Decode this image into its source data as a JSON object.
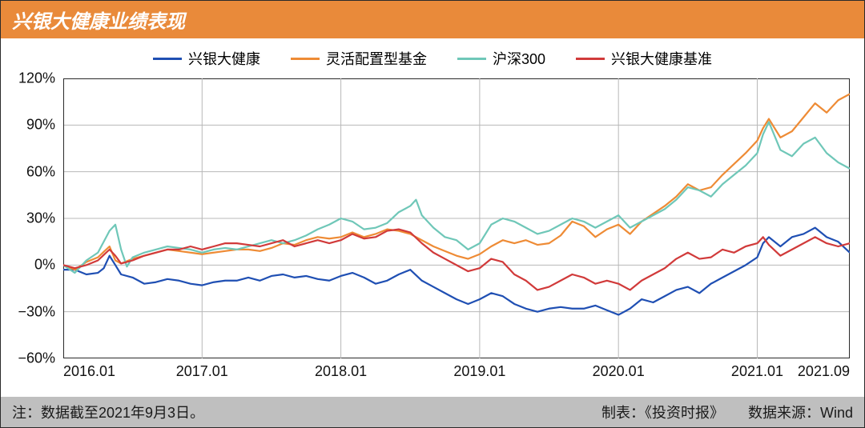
{
  "title": "兴银大健康业绩表现",
  "colors": {
    "title_bg": "#e98a3a",
    "footer_bg": "#bfbfbf",
    "grid": "#b8b8b8",
    "axis": "#2a2a2a"
  },
  "footer": {
    "note": "注：数据截至2021年9月3日。",
    "maker": "制表：《投资时报》",
    "source": "数据来源：Wind"
  },
  "chart": {
    "type": "line",
    "ylim": [
      -60,
      120
    ],
    "ytick_step": 30,
    "yticks": [
      -60,
      -30,
      0,
      30,
      60,
      90,
      120
    ],
    "x_domain": [
      0,
      68
    ],
    "xticks": [
      {
        "pos": 0,
        "label": "2016.01"
      },
      {
        "pos": 12,
        "label": "2017.01"
      },
      {
        "pos": 24,
        "label": "2018.01"
      },
      {
        "pos": 36,
        "label": "2019.01"
      },
      {
        "pos": 48,
        "label": "2020.01"
      },
      {
        "pos": 60,
        "label": "2021.01"
      },
      {
        "pos": 68,
        "label": "2021.09"
      }
    ],
    "line_width": 2.2,
    "series": [
      {
        "id": "fund",
        "label": "兴银大健康",
        "color": "#1f4fb3",
        "data": [
          [
            0,
            -3
          ],
          [
            1,
            -3
          ],
          [
            2,
            -6
          ],
          [
            3,
            -5
          ],
          [
            3.5,
            -2
          ],
          [
            4,
            6
          ],
          [
            4.5,
            0
          ],
          [
            5,
            -6
          ],
          [
            6,
            -8
          ],
          [
            7,
            -12
          ],
          [
            8,
            -11
          ],
          [
            9,
            -9
          ],
          [
            10,
            -10
          ],
          [
            11,
            -12
          ],
          [
            12,
            -13
          ],
          [
            13,
            -11
          ],
          [
            14,
            -10
          ],
          [
            15,
            -10
          ],
          [
            16,
            -8
          ],
          [
            17,
            -10
          ],
          [
            18,
            -7
          ],
          [
            19,
            -6
          ],
          [
            20,
            -8
          ],
          [
            21,
            -7
          ],
          [
            22,
            -9
          ],
          [
            23,
            -10
          ],
          [
            24,
            -7
          ],
          [
            25,
            -5
          ],
          [
            26,
            -8
          ],
          [
            27,
            -12
          ],
          [
            28,
            -10
          ],
          [
            29,
            -6
          ],
          [
            30,
            -3
          ],
          [
            31,
            -10
          ],
          [
            32,
            -14
          ],
          [
            33,
            -18
          ],
          [
            34,
            -22
          ],
          [
            35,
            -25
          ],
          [
            36,
            -22
          ],
          [
            37,
            -18
          ],
          [
            38,
            -20
          ],
          [
            39,
            -25
          ],
          [
            40,
            -28
          ],
          [
            41,
            -30
          ],
          [
            42,
            -28
          ],
          [
            43,
            -27
          ],
          [
            44,
            -28
          ],
          [
            45,
            -28
          ],
          [
            46,
            -26
          ],
          [
            47,
            -29
          ],
          [
            48,
            -32
          ],
          [
            49,
            -28
          ],
          [
            50,
            -22
          ],
          [
            51,
            -24
          ],
          [
            52,
            -20
          ],
          [
            53,
            -16
          ],
          [
            54,
            -14
          ],
          [
            55,
            -18
          ],
          [
            56,
            -12
          ],
          [
            57,
            -8
          ],
          [
            58,
            -4
          ],
          [
            59,
            0
          ],
          [
            60,
            5
          ],
          [
            60.5,
            14
          ],
          [
            61,
            18
          ],
          [
            62,
            12
          ],
          [
            63,
            18
          ],
          [
            64,
            20
          ],
          [
            65,
            24
          ],
          [
            66,
            18
          ],
          [
            67,
            15
          ],
          [
            68,
            8
          ]
        ]
      },
      {
        "id": "flexible",
        "label": "灵活配置型基金",
        "color": "#ee8b35",
        "data": [
          [
            0,
            0
          ],
          [
            1,
            -3
          ],
          [
            2,
            2
          ],
          [
            3,
            5
          ],
          [
            4,
            12
          ],
          [
            4.5,
            3
          ],
          [
            5,
            1
          ],
          [
            6,
            4
          ],
          [
            7,
            6
          ],
          [
            8,
            8
          ],
          [
            9,
            10
          ],
          [
            10,
            9
          ],
          [
            11,
            8
          ],
          [
            12,
            7
          ],
          [
            13,
            8
          ],
          [
            14,
            9
          ],
          [
            15,
            10
          ],
          [
            16,
            10
          ],
          [
            17,
            9
          ],
          [
            18,
            11
          ],
          [
            19,
            14
          ],
          [
            20,
            13
          ],
          [
            21,
            16
          ],
          [
            22,
            18
          ],
          [
            23,
            17
          ],
          [
            24,
            18
          ],
          [
            25,
            21
          ],
          [
            26,
            18
          ],
          [
            27,
            20
          ],
          [
            28,
            23
          ],
          [
            29,
            22
          ],
          [
            30,
            20
          ],
          [
            31,
            16
          ],
          [
            32,
            12
          ],
          [
            33,
            9
          ],
          [
            34,
            6
          ],
          [
            35,
            4
          ],
          [
            36,
            7
          ],
          [
            37,
            12
          ],
          [
            38,
            16
          ],
          [
            39,
            14
          ],
          [
            40,
            16
          ],
          [
            41,
            13
          ],
          [
            42,
            14
          ],
          [
            43,
            19
          ],
          [
            44,
            28
          ],
          [
            45,
            25
          ],
          [
            46,
            18
          ],
          [
            47,
            23
          ],
          [
            48,
            26
          ],
          [
            49,
            20
          ],
          [
            50,
            28
          ],
          [
            51,
            33
          ],
          [
            52,
            38
          ],
          [
            53,
            44
          ],
          [
            54,
            52
          ],
          [
            55,
            48
          ],
          [
            56,
            50
          ],
          [
            57,
            58
          ],
          [
            58,
            65
          ],
          [
            59,
            72
          ],
          [
            60,
            80
          ],
          [
            60.5,
            88
          ],
          [
            61,
            94
          ],
          [
            62,
            82
          ],
          [
            63,
            86
          ],
          [
            64,
            95
          ],
          [
            65,
            104
          ],
          [
            66,
            98
          ],
          [
            67,
            106
          ],
          [
            68,
            110
          ]
        ]
      },
      {
        "id": "csi300",
        "label": "沪深300",
        "color": "#6fc7b8",
        "data": [
          [
            0,
            0
          ],
          [
            1,
            -5
          ],
          [
            2,
            3
          ],
          [
            3,
            8
          ],
          [
            4,
            22
          ],
          [
            4.5,
            26
          ],
          [
            5,
            10
          ],
          [
            5.5,
            -1
          ],
          [
            6,
            5
          ],
          [
            7,
            8
          ],
          [
            8,
            10
          ],
          [
            9,
            12
          ],
          [
            10,
            11
          ],
          [
            11,
            10
          ],
          [
            12,
            8
          ],
          [
            13,
            10
          ],
          [
            14,
            11
          ],
          [
            15,
            10
          ],
          [
            16,
            12
          ],
          [
            17,
            14
          ],
          [
            18,
            16
          ],
          [
            19,
            14
          ],
          [
            20,
            16
          ],
          [
            21,
            19
          ],
          [
            22,
            23
          ],
          [
            23,
            26
          ],
          [
            24,
            30
          ],
          [
            25,
            28
          ],
          [
            26,
            23
          ],
          [
            27,
            24
          ],
          [
            28,
            27
          ],
          [
            29,
            34
          ],
          [
            30,
            38
          ],
          [
            30.5,
            42
          ],
          [
            31,
            32
          ],
          [
            32,
            24
          ],
          [
            33,
            18
          ],
          [
            34,
            16
          ],
          [
            35,
            10
          ],
          [
            36,
            14
          ],
          [
            37,
            26
          ],
          [
            38,
            30
          ],
          [
            39,
            28
          ],
          [
            40,
            24
          ],
          [
            41,
            20
          ],
          [
            42,
            22
          ],
          [
            43,
            26
          ],
          [
            44,
            30
          ],
          [
            45,
            28
          ],
          [
            46,
            24
          ],
          [
            47,
            28
          ],
          [
            48,
            32
          ],
          [
            49,
            24
          ],
          [
            50,
            28
          ],
          [
            51,
            32
          ],
          [
            52,
            36
          ],
          [
            53,
            42
          ],
          [
            54,
            50
          ],
          [
            55,
            48
          ],
          [
            56,
            44
          ],
          [
            57,
            52
          ],
          [
            58,
            58
          ],
          [
            59,
            64
          ],
          [
            60,
            72
          ],
          [
            60.5,
            84
          ],
          [
            61,
            92
          ],
          [
            62,
            74
          ],
          [
            63,
            70
          ],
          [
            64,
            78
          ],
          [
            65,
            82
          ],
          [
            66,
            72
          ],
          [
            67,
            66
          ],
          [
            68,
            62
          ]
        ]
      },
      {
        "id": "benchmark",
        "label": "兴银大健康基准",
        "color": "#d13a3a",
        "data": [
          [
            0,
            0
          ],
          [
            1,
            -2
          ],
          [
            2,
            0
          ],
          [
            3,
            3
          ],
          [
            4,
            10
          ],
          [
            4.5,
            6
          ],
          [
            5,
            1
          ],
          [
            6,
            3
          ],
          [
            7,
            6
          ],
          [
            8,
            8
          ],
          [
            9,
            10
          ],
          [
            10,
            10
          ],
          [
            11,
            12
          ],
          [
            12,
            10
          ],
          [
            13,
            12
          ],
          [
            14,
            14
          ],
          [
            15,
            14
          ],
          [
            16,
            13
          ],
          [
            17,
            12
          ],
          [
            18,
            14
          ],
          [
            19,
            16
          ],
          [
            20,
            12
          ],
          [
            21,
            14
          ],
          [
            22,
            16
          ],
          [
            23,
            14
          ],
          [
            24,
            16
          ],
          [
            25,
            20
          ],
          [
            26,
            17
          ],
          [
            27,
            18
          ],
          [
            28,
            22
          ],
          [
            29,
            23
          ],
          [
            30,
            21
          ],
          [
            31,
            14
          ],
          [
            32,
            8
          ],
          [
            33,
            4
          ],
          [
            34,
            0
          ],
          [
            35,
            -4
          ],
          [
            36,
            -2
          ],
          [
            37,
            4
          ],
          [
            38,
            2
          ],
          [
            39,
            -6
          ],
          [
            40,
            -10
          ],
          [
            41,
            -16
          ],
          [
            42,
            -14
          ],
          [
            43,
            -10
          ],
          [
            44,
            -6
          ],
          [
            45,
            -8
          ],
          [
            46,
            -12
          ],
          [
            47,
            -10
          ],
          [
            48,
            -12
          ],
          [
            49,
            -16
          ],
          [
            50,
            -10
          ],
          [
            51,
            -6
          ],
          [
            52,
            -2
          ],
          [
            53,
            4
          ],
          [
            54,
            8
          ],
          [
            55,
            4
          ],
          [
            56,
            5
          ],
          [
            57,
            10
          ],
          [
            58,
            8
          ],
          [
            59,
            12
          ],
          [
            60,
            14
          ],
          [
            60.5,
            18
          ],
          [
            61,
            13
          ],
          [
            62,
            6
          ],
          [
            63,
            10
          ],
          [
            64,
            14
          ],
          [
            65,
            18
          ],
          [
            66,
            14
          ],
          [
            67,
            12
          ],
          [
            68,
            14
          ]
        ]
      }
    ]
  }
}
